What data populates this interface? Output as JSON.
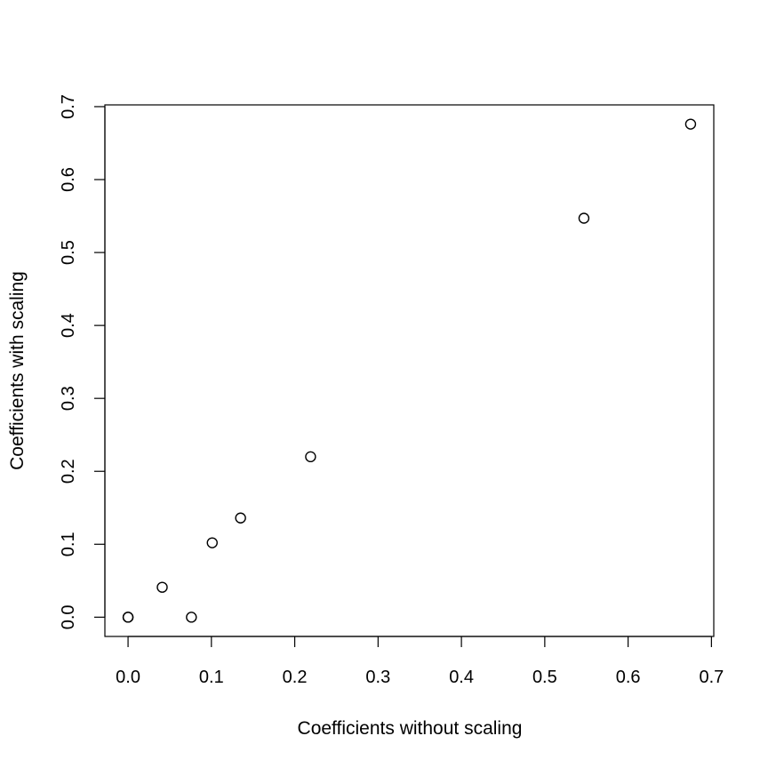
{
  "chart_data": {
    "type": "scatter",
    "title": "",
    "xlabel": "Coefficients without scaling",
    "ylabel": "Coefficients with scaling",
    "xlim": [
      -0.0278,
      0.7028
    ],
    "ylim": [
      -0.0264,
      0.7024
    ],
    "xticks": [
      0.0,
      0.1,
      0.2,
      0.3,
      0.4,
      0.5,
      0.6,
      0.7
    ],
    "yticks": [
      0.0,
      0.1,
      0.2,
      0.3,
      0.4,
      0.5,
      0.6,
      0.7
    ],
    "xtick_labels": [
      "0.0",
      "0.1",
      "0.2",
      "0.3",
      "0.4",
      "0.5",
      "0.6",
      "0.7"
    ],
    "ytick_labels": [
      "0.0",
      "0.1",
      "0.2",
      "0.3",
      "0.4",
      "0.5",
      "0.6",
      "0.7"
    ],
    "grid": false,
    "legend": "none",
    "marker": "open-circle",
    "points": [
      {
        "x": 0.0,
        "y": 0.0
      },
      {
        "x": 0.0,
        "y": 0.0
      },
      {
        "x": 0.041,
        "y": 0.041
      },
      {
        "x": 0.076,
        "y": 0.0
      },
      {
        "x": 0.101,
        "y": 0.102
      },
      {
        "x": 0.135,
        "y": 0.136
      },
      {
        "x": 0.219,
        "y": 0.22
      },
      {
        "x": 0.547,
        "y": 0.547
      },
      {
        "x": 0.675,
        "y": 0.676
      }
    ]
  }
}
